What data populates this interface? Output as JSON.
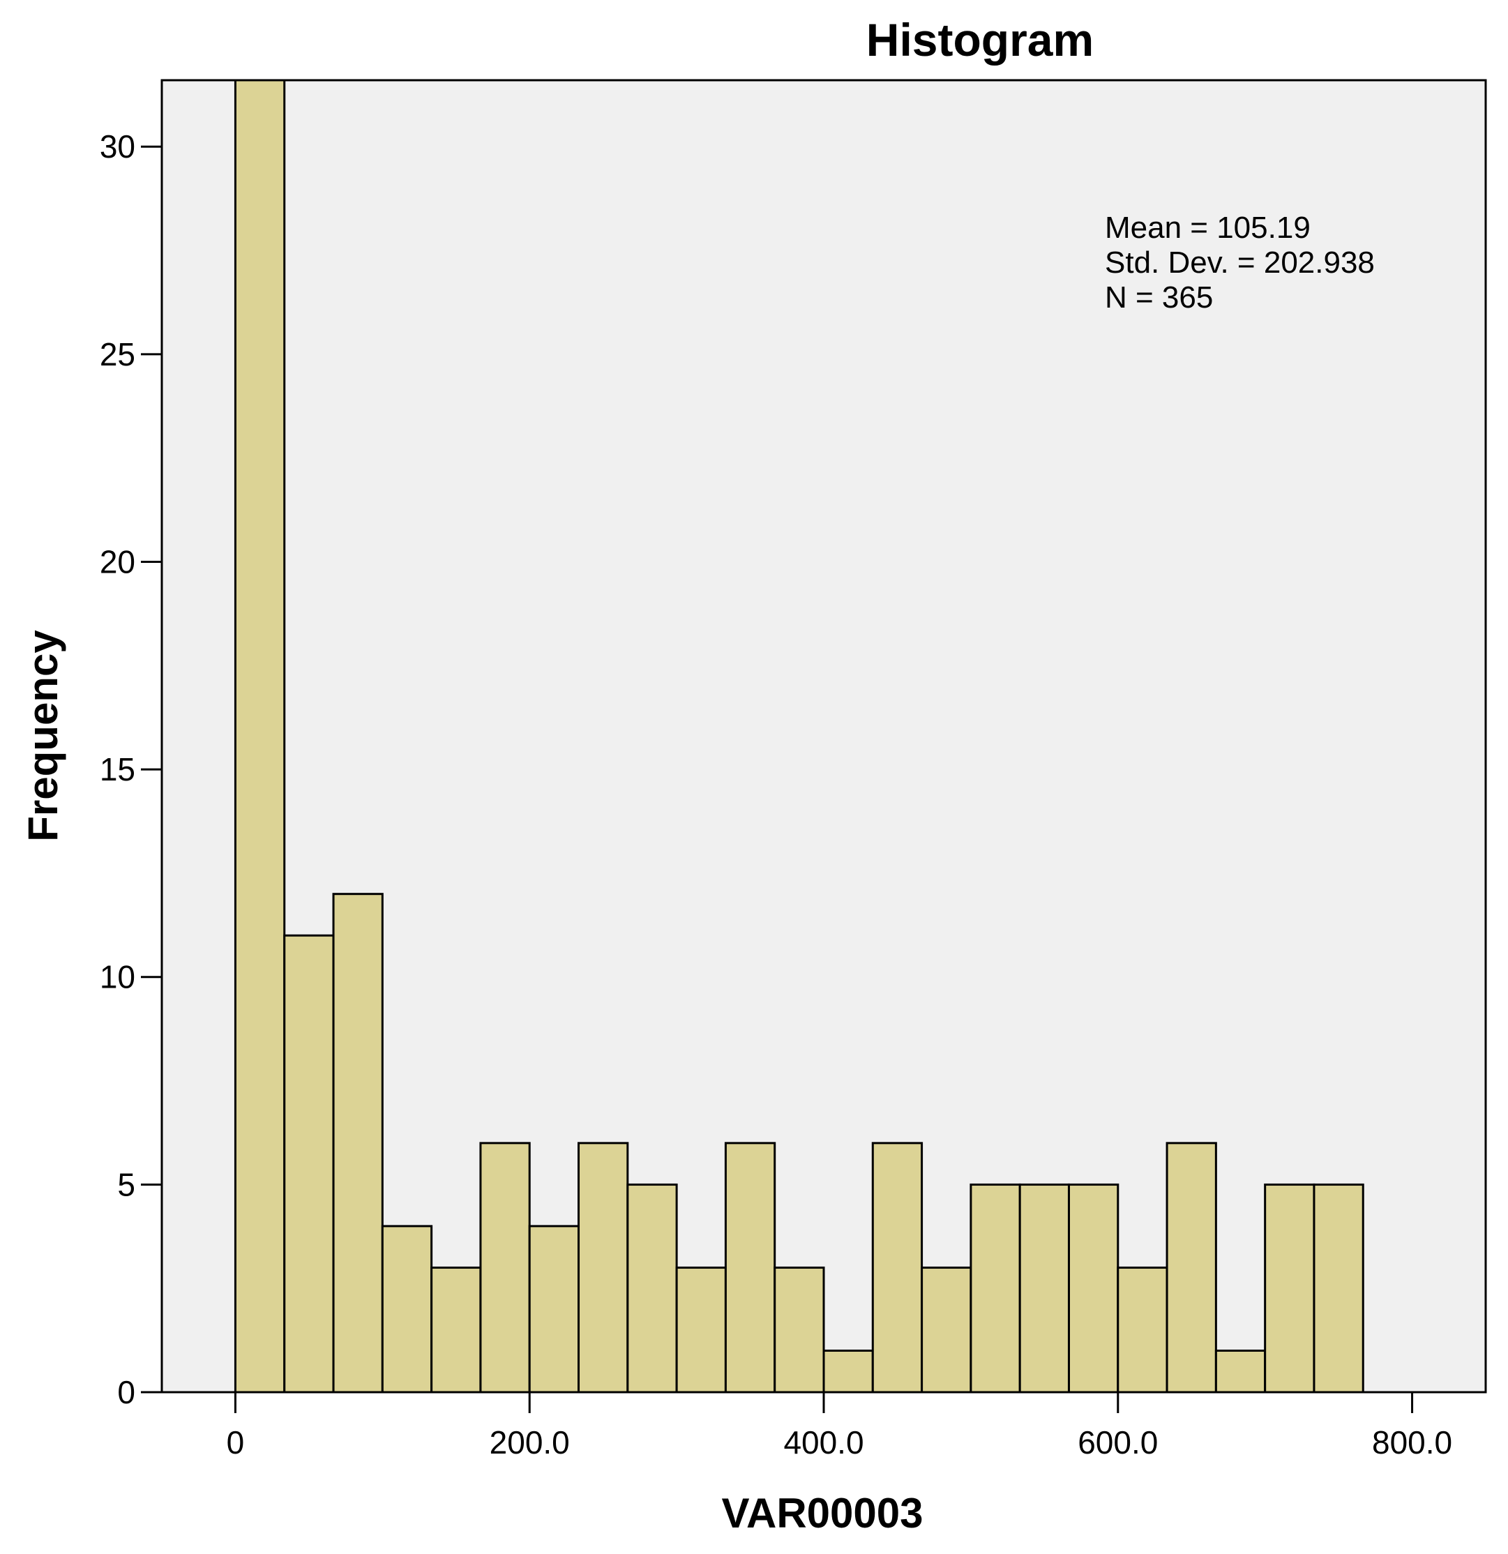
{
  "chart_data": {
    "type": "bar",
    "title": "Histogram",
    "xlabel": "VAR00003",
    "ylabel": "Frequency",
    "bin_width": 33.33,
    "bins_start": [
      0,
      33.33,
      66.67,
      100,
      133.33,
      166.67,
      200,
      233.33,
      266.67,
      300,
      333.33,
      366.67,
      400,
      433.33,
      466.67,
      500,
      533.33,
      566.67,
      600,
      633.33,
      666.67,
      700,
      733.33
    ],
    "values": [
      31.6,
      11,
      12,
      4,
      3,
      6,
      4,
      6,
      5,
      3,
      6,
      3,
      1,
      6,
      3,
      5,
      5,
      5,
      3,
      6,
      1,
      5,
      5
    ],
    "xlim": [
      -50,
      850
    ],
    "ylim": [
      0,
      31.6
    ],
    "x_ticks": [
      0,
      200,
      400,
      600,
      800
    ],
    "x_tick_labels": [
      "0",
      "200.0",
      "400.0",
      "600.0",
      "800.0"
    ],
    "y_ticks": [
      0,
      5,
      10,
      15,
      20,
      25,
      30
    ],
    "y_tick_labels": [
      "0",
      "5",
      "10",
      "15",
      "20",
      "25",
      "30"
    ],
    "stats": {
      "mean": "Mean = 105.19",
      "std_dev": "Std. Dev. = 202.938",
      "n": "N = 365"
    },
    "colors": {
      "bar": "#dcd395",
      "plot_background": "#f0f0f0"
    },
    "grid": false,
    "legend": "none"
  }
}
